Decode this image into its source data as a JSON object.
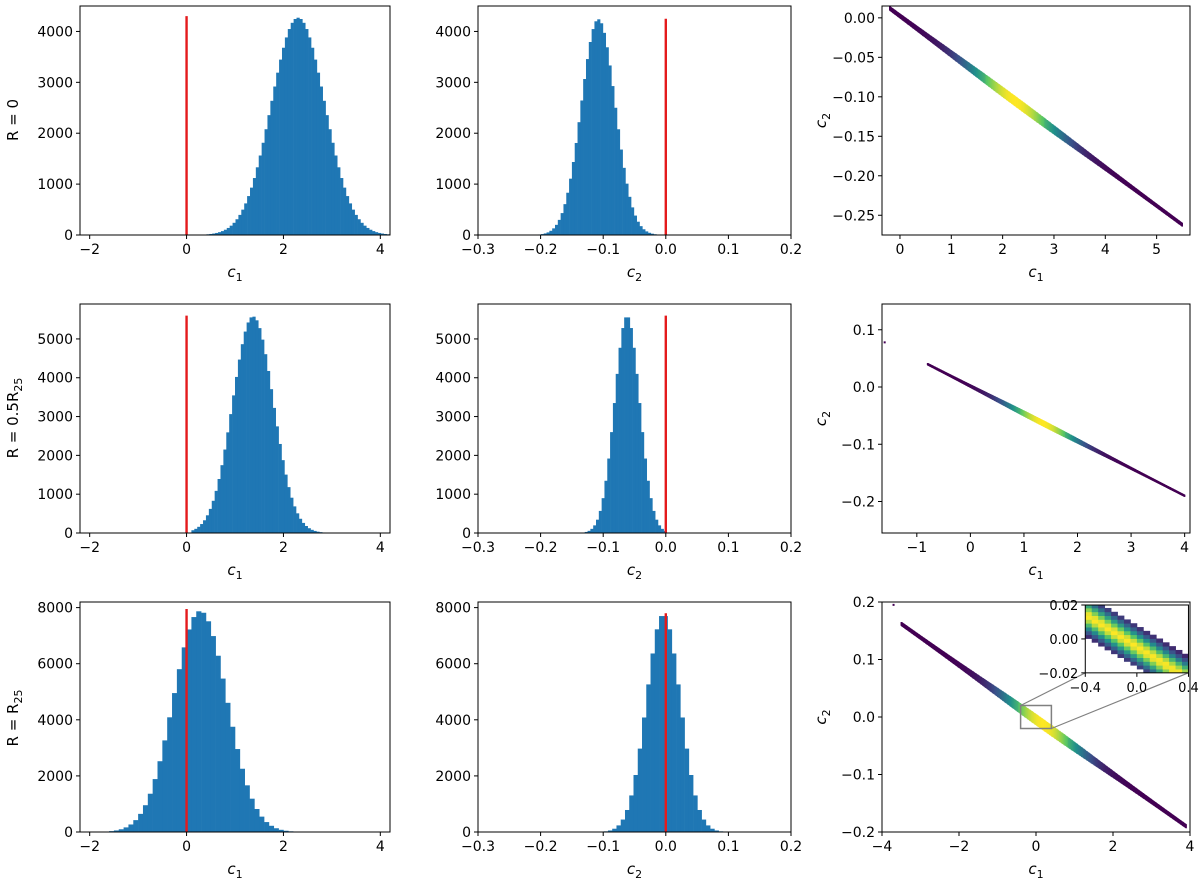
{
  "rows": [
    {
      "label": "R = 0",
      "label_parts": [
        "R = 0"
      ]
    },
    {
      "label": "R = 0.5R25",
      "label_parts": [
        "R = 0.5R",
        "25"
      ]
    },
    {
      "label": "R = R25",
      "label_parts": [
        "R = R",
        "25"
      ]
    }
  ],
  "colors": {
    "histogram": "#1f77b4",
    "reference_line": "#e41a1c",
    "inset_box": "#808080",
    "density_colormap": [
      "#440154",
      "#3b528b",
      "#21908c",
      "#5dc863",
      "#fde725"
    ]
  },
  "chart_data": [
    {
      "type": "bar",
      "panel": "hist-c1-R0",
      "xlabel": "c",
      "xlabel_sub": "1",
      "xlim": [
        -2.2,
        4.2
      ],
      "ylim": [
        0,
        4500
      ],
      "xticks": [
        -2,
        0,
        2,
        4
      ],
      "yticks": [
        0,
        1000,
        2000,
        3000,
        4000
      ],
      "reference_x": 0,
      "reference_top": 4300,
      "dist": {
        "mean": 2.3,
        "sd": 0.55,
        "peak": 4270,
        "min": 0.35,
        "max": 4.2,
        "bin": 0.06
      }
    },
    {
      "type": "bar",
      "panel": "hist-c2-R0",
      "xlabel": "c",
      "xlabel_sub": "2",
      "xlim": [
        -0.3,
        0.2
      ],
      "ylim": [
        0,
        4500
      ],
      "xticks": [
        -0.3,
        -0.2,
        -0.1,
        0.0,
        0.1,
        0.2
      ],
      "yticks": [
        0,
        1000,
        2000,
        3000,
        4000
      ],
      "reference_x": 0,
      "reference_top": 4250,
      "dist": {
        "mean": -0.108,
        "sd": 0.027,
        "peak": 4240,
        "min": -0.24,
        "max": 0.0,
        "bin": 0.0045
      }
    },
    {
      "type": "heatmap",
      "panel": "density-R0",
      "xlabel": "c",
      "xlabel_sub": "1",
      "ylabel": "c",
      "ylabel_sub": "2",
      "xlim": [
        -0.35,
        5.65
      ],
      "ylim": [
        -0.275,
        0.015
      ],
      "xticks": [
        0,
        1,
        2,
        3,
        4,
        5
      ],
      "yticks": [
        0.0,
        -0.05,
        -0.1,
        -0.15,
        -0.2,
        -0.25
      ],
      "line": {
        "x0": -0.2,
        "y0": 0.012,
        "x1": 5.5,
        "y1": -0.262,
        "center": 0.43,
        "spread": 0.15,
        "halfwidth": 0.006
      }
    },
    {
      "type": "bar",
      "panel": "hist-c1-R05",
      "xlabel": "c",
      "xlabel_sub": "1",
      "xlim": [
        -2.2,
        4.2
      ],
      "ylim": [
        0,
        5900
      ],
      "xticks": [
        -2,
        0,
        2,
        4
      ],
      "yticks": [
        0,
        1000,
        2000,
        3000,
        4000,
        5000
      ],
      "reference_x": 0,
      "reference_top": 5600,
      "dist": {
        "mean": 1.37,
        "sd": 0.42,
        "peak": 5580,
        "min": 0.1,
        "max": 3.35,
        "bin": 0.06
      }
    },
    {
      "type": "bar",
      "panel": "hist-c2-R05",
      "xlabel": "c",
      "xlabel_sub": "2",
      "xlim": [
        -0.3,
        0.2
      ],
      "ylim": [
        0,
        5900
      ],
      "xticks": [
        -0.3,
        -0.2,
        -0.1,
        0.0,
        0.1,
        0.2
      ],
      "yticks": [
        0,
        1000,
        2000,
        3000,
        4000,
        5000
      ],
      "reference_x": 0,
      "reference_top": 5600,
      "dist": {
        "mean": -0.062,
        "sd": 0.02,
        "peak": 5590,
        "min": -0.17,
        "max": 0.0,
        "bin": 0.0045
      }
    },
    {
      "type": "heatmap",
      "panel": "density-R05",
      "xlabel": "c",
      "xlabel_sub": "1",
      "ylabel": "c",
      "ylabel_sub": "2",
      "xlim": [
        -1.65,
        4.1
      ],
      "ylim": [
        -0.255,
        0.145
      ],
      "xticks": [
        -1,
        0,
        1,
        2,
        3,
        4
      ],
      "yticks": [
        -0.2,
        -0.1,
        0.0,
        0.1
      ],
      "line": {
        "x0": -0.8,
        "y0": 0.04,
        "x1": 4.0,
        "y1": -0.19,
        "center": 0.45,
        "spread": 0.13,
        "halfwidth": 0.005
      },
      "outliers": [
        [
          -1.6,
          0.078
        ]
      ]
    },
    {
      "type": "bar",
      "panel": "hist-c1-R25",
      "xlabel": "c",
      "xlabel_sub": "1",
      "xlim": [
        -2.2,
        4.2
      ],
      "ylim": [
        0,
        8200
      ],
      "xticks": [
        -2,
        0,
        2,
        4
      ],
      "yticks": [
        0,
        2000,
        4000,
        6000,
        8000
      ],
      "reference_x": 0,
      "reference_top": 7950,
      "dist": {
        "mean": 0.28,
        "sd": 0.55,
        "peak": 7880,
        "min": -2.0,
        "max": 2.9,
        "bin": 0.1
      }
    },
    {
      "type": "bar",
      "panel": "hist-c2-R25",
      "xlabel": "c",
      "xlabel_sub": "2",
      "xlim": [
        -0.3,
        0.2
      ],
      "ylim": [
        0,
        8200
      ],
      "xticks": [
        -0.3,
        -0.2,
        -0.1,
        0.0,
        0.1,
        0.2
      ],
      "yticks": [
        0,
        2000,
        4000,
        6000,
        8000
      ],
      "reference_x": 0,
      "reference_top": 7800,
      "dist": {
        "mean": -0.004,
        "sd": 0.027,
        "peak": 7760,
        "min": -0.14,
        "max": 0.12,
        "bin": 0.0068
      }
    },
    {
      "type": "heatmap",
      "panel": "density-R25",
      "xlabel": "c",
      "xlabel_sub": "1",
      "ylabel": "c",
      "ylabel_sub": "2",
      "xlim": [
        -4,
        4
      ],
      "ylim": [
        -0.2,
        0.2
      ],
      "xticks": [
        -4,
        -2,
        0,
        2,
        4
      ],
      "yticks": [
        -0.2,
        -0.1,
        0.0,
        0.1,
        0.2
      ],
      "line": {
        "x0": -3.5,
        "y0": 0.162,
        "x1": 3.9,
        "y1": -0.19,
        "center": 0.5,
        "spread": 0.13,
        "halfwidth": 0.009
      },
      "outliers": [
        [
          -3.7,
          0.195
        ]
      ],
      "zoom_box": {
        "xlim": [
          -0.4,
          0.4
        ],
        "ylim": [
          -0.02,
          0.02
        ]
      },
      "inset": {
        "xlim": [
          -0.4,
          0.4
        ],
        "ylim": [
          -0.02,
          0.02
        ],
        "xticks": [
          -0.4,
          0.0,
          0.4
        ],
        "yticks": [
          0.02,
          0.0,
          -0.02
        ]
      }
    }
  ]
}
